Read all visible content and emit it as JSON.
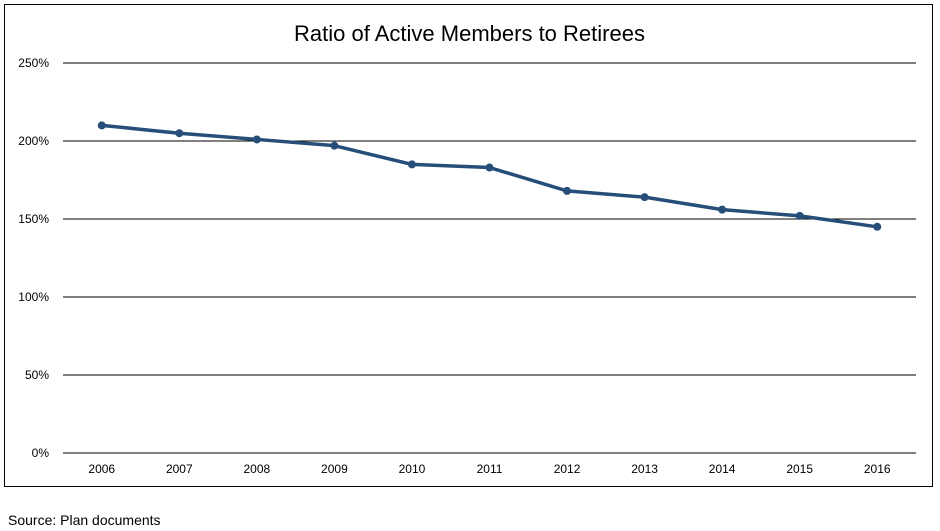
{
  "chart_data": {
    "type": "line",
    "title": "Ratio of Active Members to Retirees",
    "xlabel": "",
    "ylabel": "",
    "categories": [
      "2006",
      "2007",
      "2008",
      "2009",
      "2010",
      "2011",
      "2012",
      "2013",
      "2014",
      "2015",
      "2016"
    ],
    "series": [
      {
        "values": [
          210,
          205,
          201,
          197,
          185,
          183,
          168,
          164,
          156,
          152,
          145
        ]
      }
    ],
    "ylim": [
      0,
      250
    ],
    "yticks": [
      0,
      50,
      100,
      150,
      200,
      250
    ],
    "ytick_labels": [
      "0%",
      "50%",
      "100%",
      "150%",
      "200%",
      "250%"
    ],
    "y_unit": "percent",
    "grid": "horizontal",
    "legend": "none",
    "line_color": "#264e78",
    "grid_color": "#000000"
  },
  "source": "Source: Plan documents"
}
